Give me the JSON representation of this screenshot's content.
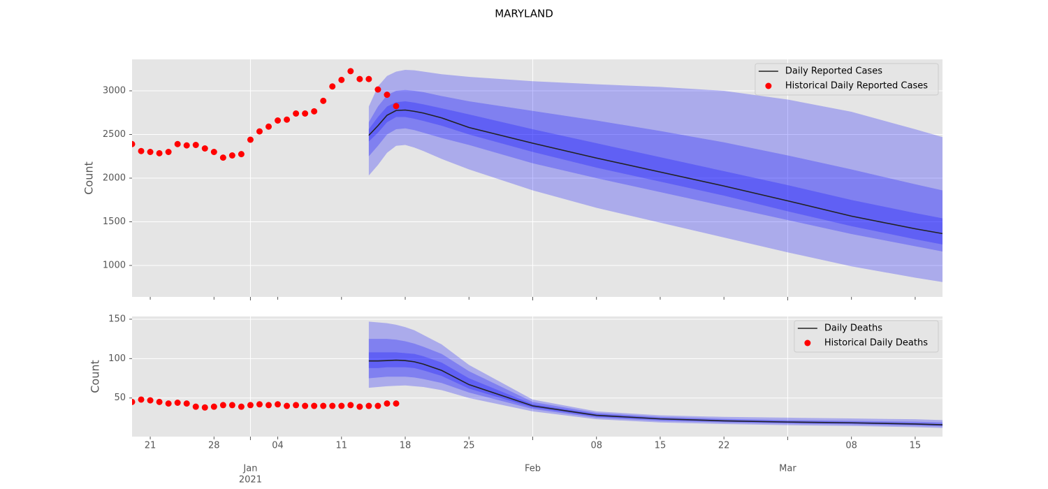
{
  "title": "MARYLAND",
  "chart_data": [
    {
      "type": "line",
      "ylabel": "Count",
      "legend": "upper right",
      "grid": true,
      "background": "#e5e5e5",
      "xlim": [
        "2020-12-19",
        "2021-03-18"
      ],
      "ylim": [
        640,
        3360
      ],
      "yticks": [
        1000,
        1500,
        2000,
        2500,
        3000
      ],
      "xticks": [
        "2020-12-21",
        "2020-12-28",
        "2021-01-04",
        "2021-01-11",
        "2021-01-18",
        "2021-01-25",
        "2021-02-08",
        "2021-02-15",
        "2021-02-22",
        "2021-03-08",
        "2021-03-15"
      ],
      "xticks_major": [
        "2021-01-01",
        "2021-02-01",
        "2021-03-01"
      ],
      "series": [
        {
          "name": "Daily Reported Cases",
          "color": "#222222",
          "x": [
            "2021-01-14",
            "2021-01-15",
            "2021-01-16",
            "2021-01-17",
            "2021-01-18",
            "2021-01-19",
            "2021-01-20",
            "2021-01-22",
            "2021-01-25",
            "2021-02-01",
            "2021-02-08",
            "2021-02-15",
            "2021-02-22",
            "2021-03-01",
            "2021-03-08",
            "2021-03-15",
            "2021-03-18"
          ],
          "values": [
            2490,
            2600,
            2720,
            2775,
            2780,
            2765,
            2745,
            2690,
            2580,
            2400,
            2230,
            2070,
            1910,
            1740,
            1565,
            1420,
            1365
          ]
        },
        {
          "name": "Historical Daily Reported Cases",
          "color": "#ff0000",
          "marker": "dot",
          "x": [
            "2020-12-19",
            "2020-12-20",
            "2020-12-21",
            "2020-12-22",
            "2020-12-23",
            "2020-12-24",
            "2020-12-25",
            "2020-12-26",
            "2020-12-27",
            "2020-12-28",
            "2020-12-29",
            "2020-12-30",
            "2020-12-31",
            "2021-01-01",
            "2021-01-02",
            "2021-01-03",
            "2021-01-04",
            "2021-01-05",
            "2021-01-06",
            "2021-01-07",
            "2021-01-08",
            "2021-01-09",
            "2021-01-10",
            "2021-01-11",
            "2021-01-12",
            "2021-01-13",
            "2021-01-14",
            "2021-01-15",
            "2021-01-16",
            "2021-01-17"
          ],
          "values": [
            2390,
            2310,
            2300,
            2285,
            2300,
            2390,
            2375,
            2380,
            2340,
            2300,
            2235,
            2260,
            2275,
            2440,
            2535,
            2590,
            2660,
            2670,
            2740,
            2740,
            2765,
            2885,
            3050,
            3125,
            3225,
            3135,
            3135,
            3015,
            2955,
            2825
          ]
        }
      ],
      "bands": {
        "color": "#0000ff",
        "opacity": 0.25,
        "levels": [
          {
            "upper": [
              2820,
              3050,
              3170,
              3220,
              3240,
              3235,
              3220,
              3190,
              3160,
              3110,
              3075,
              3045,
              3000,
              2900,
              2760,
              2560,
              2470
            ],
            "lower": [
              2030,
              2150,
              2290,
              2370,
              2380,
              2350,
              2310,
              2220,
              2100,
              1860,
              1660,
              1490,
              1320,
              1150,
              990,
              860,
              810
            ]
          },
          {
            "upper": [
              2640,
              2820,
              2950,
              3000,
              3010,
              3000,
              2985,
              2940,
              2880,
              2770,
              2660,
              2540,
              2410,
              2260,
              2100,
              1930,
              1860
            ],
            "lower": [
              2250,
              2370,
              2500,
              2560,
              2570,
              2550,
              2520,
              2460,
              2380,
              2170,
              2000,
              1840,
              1680,
              1520,
              1360,
              1220,
              1160
            ]
          },
          {
            "upper": [
              2560,
              2700,
              2820,
              2870,
              2880,
              2865,
              2845,
              2800,
              2730,
              2560,
              2400,
              2240,
              2080,
              1920,
              1750,
              1600,
              1540
            ],
            "lower": [
              2420,
              2520,
              2640,
              2700,
              2700,
              2680,
              2655,
              2600,
              2500,
              2300,
              2120,
              1960,
              1800,
              1620,
              1450,
              1300,
              1240
            ]
          }
        ]
      }
    },
    {
      "type": "line",
      "ylabel": "Count",
      "legend": "upper right",
      "grid": true,
      "background": "#e5e5e5",
      "xlim": [
        "2020-12-19",
        "2021-03-18"
      ],
      "ylim": [
        1,
        153.5
      ],
      "yticks": [
        50,
        100,
        150
      ],
      "xticks": [
        {
          "value": "2020-12-21",
          "label": "21"
        },
        {
          "value": "2020-12-28",
          "label": "28"
        },
        {
          "value": "2021-01-04",
          "label": "04"
        },
        {
          "value": "2021-01-11",
          "label": "11"
        },
        {
          "value": "2021-01-18",
          "label": "18"
        },
        {
          "value": "2021-01-25",
          "label": "25"
        },
        {
          "value": "2021-02-08",
          "label": "08"
        },
        {
          "value": "2021-02-15",
          "label": "15"
        },
        {
          "value": "2021-02-22",
          "label": "22"
        },
        {
          "value": "2021-03-08",
          "label": "08"
        },
        {
          "value": "2021-03-15",
          "label": "15"
        }
      ],
      "xticks_major": [
        {
          "value": "2021-01-01",
          "label": "Jan"
        },
        {
          "value": "2021-02-01",
          "label": "Feb"
        },
        {
          "value": "2021-03-01",
          "label": "Mar"
        }
      ],
      "xtick_year": {
        "value": "2021-01-01",
        "label": "2021"
      },
      "series": [
        {
          "name": "Daily Deaths",
          "color": "#222222",
          "x": [
            "2021-01-14",
            "2021-01-15",
            "2021-01-16",
            "2021-01-17",
            "2021-01-18",
            "2021-01-19",
            "2021-01-20",
            "2021-01-22",
            "2021-01-25",
            "2021-02-01",
            "2021-02-08",
            "2021-02-15",
            "2021-02-22",
            "2021-03-01",
            "2021-03-08",
            "2021-03-15",
            "2021-03-18"
          ],
          "values": [
            97,
            97,
            97.5,
            98,
            97.5,
            96,
            93,
            85,
            67,
            40,
            28,
            23.5,
            21,
            19.5,
            18.5,
            17,
            16
          ]
        },
        {
          "name": "Historical Daily Deaths",
          "color": "#ff0000",
          "marker": "dot",
          "x": [
            "2020-12-19",
            "2020-12-20",
            "2020-12-21",
            "2020-12-22",
            "2020-12-23",
            "2020-12-24",
            "2020-12-25",
            "2020-12-26",
            "2020-12-27",
            "2020-12-28",
            "2020-12-29",
            "2020-12-30",
            "2020-12-31",
            "2021-01-01",
            "2021-01-02",
            "2021-01-03",
            "2021-01-04",
            "2021-01-05",
            "2021-01-06",
            "2021-01-07",
            "2021-01-08",
            "2021-01-09",
            "2021-01-10",
            "2021-01-11",
            "2021-01-12",
            "2021-01-13",
            "2021-01-14",
            "2021-01-15",
            "2021-01-16",
            "2021-01-17"
          ],
          "values": [
            45,
            48,
            47,
            45,
            43,
            44,
            43,
            39,
            38,
            39,
            41,
            41,
            39,
            41,
            42,
            41,
            42,
            40,
            41,
            40,
            40,
            40,
            40,
            40,
            41,
            39,
            40,
            40,
            43,
            43
          ]
        }
      ],
      "bands": {
        "color": "#0000ff",
        "opacity": 0.25,
        "levels": [
          {
            "upper": [
              147,
              146,
              145,
              143,
              140,
              136,
              130,
              118,
              92,
              48,
              33,
              28,
              26,
              25,
              24,
              23,
              22
            ],
            "lower": [
              63,
              64,
              65,
              65.5,
              66,
              65,
              64,
              60,
              50,
              33,
              23,
              19,
              17,
              15.5,
              14.5,
              13,
              12
            ]
          },
          {
            "upper": [
              125,
              125,
              125,
              124,
              122,
              119,
              115,
              106,
              84,
              45,
              31,
              26,
              23.5,
              22,
              21,
              20,
              19
            ],
            "lower": [
              75,
              76,
              77,
              77,
              77,
              76,
              74,
              69,
              57,
              36,
              25,
              21,
              19,
              17.5,
              16.5,
              15,
              14
            ]
          },
          {
            "upper": [
              108,
              108,
              108,
              108,
              107,
              106,
              103,
              95,
              75,
              42,
              29.5,
              24.5,
              22,
              20.5,
              19.5,
              18,
              17
            ],
            "lower": [
              88,
              88,
              89,
              89,
              89,
              88,
              85,
              78,
              62,
              38,
              26.5,
              22.5,
              20,
              18.5,
              17.5,
              16,
              15
            ]
          }
        ]
      }
    }
  ]
}
